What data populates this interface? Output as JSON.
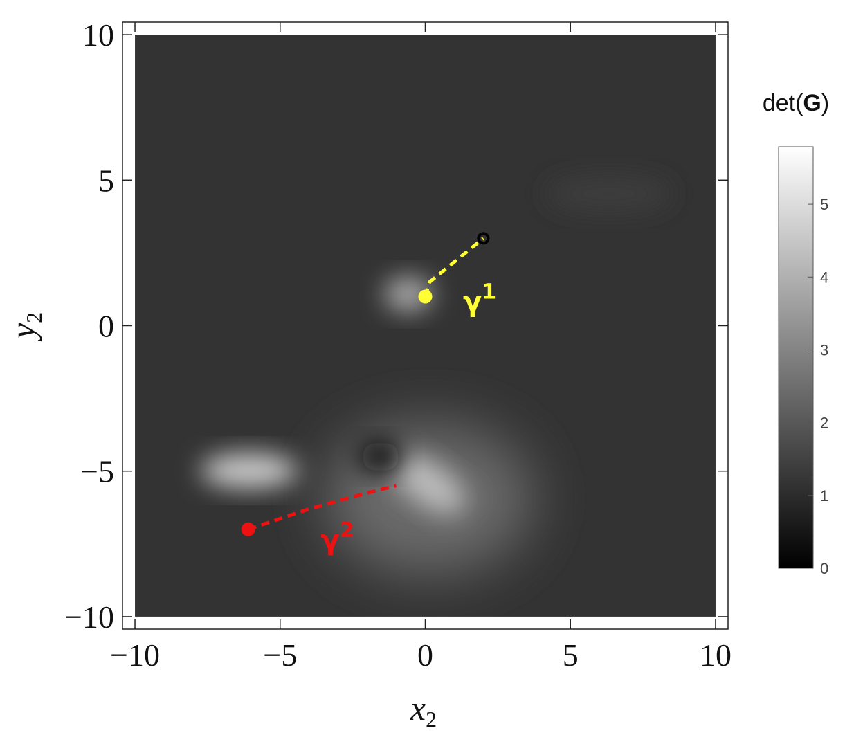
{
  "chart_data": {
    "type": "density",
    "x_label": {
      "base": "x",
      "sub": "2"
    },
    "y_label": {
      "base": "y",
      "sub": "2"
    },
    "xlim": [
      -10.43,
      10.43
    ],
    "ylim": [
      -10.43,
      10.43
    ],
    "extent": [
      -10,
      10
    ],
    "xticks": [
      {
        "value": -10,
        "label": "−10"
      },
      {
        "value": -5,
        "label": "−5"
      },
      0,
      5,
      10
    ],
    "yticks": [
      {
        "value": -10,
        "label": "−10"
      },
      {
        "value": -5,
        "label": "−5"
      },
      0,
      5,
      10
    ],
    "colorbar": {
      "label": {
        "prefix": "det(",
        "bold": "G",
        "suffix": ")"
      },
      "lim": [
        0,
        5.79
      ],
      "ticks": [
        0,
        1,
        2,
        3,
        4,
        5
      ]
    },
    "series": [
      {
        "name": {
          "base": "γ",
          "sup": "1"
        },
        "color": "#ffff33",
        "x": [
          0,
          0.15,
          2
        ],
        "y": [
          1,
          1.5,
          3
        ],
        "start_color": "#ffff33",
        "end_color": "#000000",
        "label_at": [
          1.3,
          0.5
        ]
      },
      {
        "name": {
          "base": "γ",
          "sup": "2"
        },
        "color": "#ee1111",
        "x": [
          -6.1,
          -4,
          -2,
          -1
        ],
        "y": [
          -7,
          -6.3,
          -5.75,
          -5.5
        ],
        "start_color": "#ee1111",
        "end_color": null,
        "label_at": [
          -3.6,
          -7.7
        ]
      }
    ]
  }
}
